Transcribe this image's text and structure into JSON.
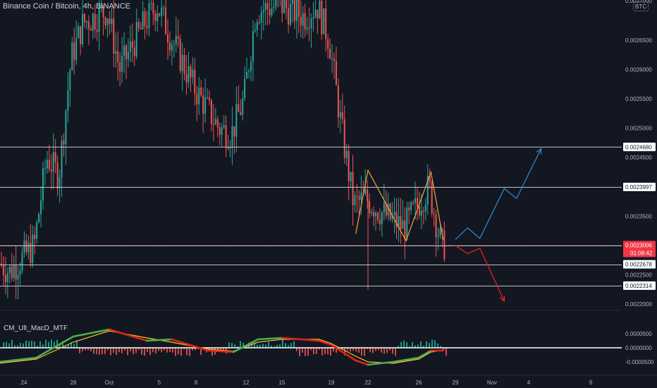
{
  "header": {
    "title": "Binance Coin / Bitcoin, 4h, BINANCE",
    "currency_badge": "BTC"
  },
  "indicator": {
    "title": "CM_Ult_MacD_MTF"
  },
  "colors": {
    "background": "#131722",
    "bull": "#26a69a",
    "bear": "#ef5350",
    "grid": "#1e222d",
    "level_line": "#d1d4dc",
    "pattern": "#f0a53a",
    "projection_up": "#2e86c1",
    "projection_down": "#e0231b",
    "macd_up": "#4caf50",
    "macd_down": "#e0231b",
    "signal": "#f9c22e",
    "price_label": "#f23645"
  },
  "chart_data": [
    {
      "type": "candlestick",
      "title": "Binance Coin / Bitcoin, 4h, BINANCE",
      "y_axis_ticks": [
        "0.0026500",
        "0.0026000",
        "0.0025500",
        "0.0025000",
        "0.0024500",
        "0.0023500",
        "0.0022000"
      ],
      "x_axis_ticks": [
        "24",
        "28",
        "Oct",
        "5",
        "8",
        "12",
        "15",
        "19",
        "22",
        "26",
        "29",
        "Nov",
        "4",
        "9"
      ],
      "ylim": [
        0.00218,
        0.00274
      ],
      "partial_top_label": "0.0027000",
      "horizontal_levels": [
        {
          "value": 0.002468,
          "label": "0.0024680"
        },
        {
          "value": 0.0023997,
          "label": "0.0023997"
        },
        {
          "value": 0.0022998,
          "label": "0.0022998"
        },
        {
          "value": 0.0022678,
          "label": "0.0022678"
        },
        {
          "value": 0.0022314,
          "label": "0.0022314"
        }
      ],
      "overlapped_axis_label": "0.0022500",
      "current_price": {
        "value": 0.0023006,
        "label": "0.0023006",
        "countdown": "01:08:42"
      },
      "pattern": {
        "name": "double top",
        "points": [
          {
            "x": "Oct 21",
            "y": 0.00232
          },
          {
            "x": "Oct 22",
            "y": 0.002428
          },
          {
            "x": "Oct 25",
            "y": 0.002308
          },
          {
            "x": "Oct 27",
            "y": 0.002425
          },
          {
            "x": "Oct 28",
            "y": 0.00231
          }
        ]
      },
      "projections": [
        {
          "direction": "up",
          "points": [
            {
              "x": "Oct 29",
              "y": 0.00231
            },
            {
              "x": "Oct 30",
              "y": 0.00233
            },
            {
              "x": "Oct 31",
              "y": 0.002312
            },
            {
              "x": "Nov 2",
              "y": 0.002397
            },
            {
              "x": "Nov 3",
              "y": 0.00238
            },
            {
              "x": "Nov 5",
              "y": 0.002465
            }
          ]
        },
        {
          "direction": "down",
          "points": [
            {
              "x": "Oct 29",
              "y": 0.0023
            },
            {
              "x": "Oct 30",
              "y": 0.002286
            },
            {
              "x": "Oct 31",
              "y": 0.002295
            },
            {
              "x": "Nov 2",
              "y": 0.002205
            }
          ]
        }
      ],
      "price_path": [
        {
          "x": "Sep 21",
          "y": 0.00229
        },
        {
          "x": "Sep 23",
          "y": 0.002255
        },
        {
          "x": "Sep 25",
          "y": 0.0023
        },
        {
          "x": "Sep 26",
          "y": 0.00245
        },
        {
          "x": "Sep 27",
          "y": 0.00242
        },
        {
          "x": "Sep 28",
          "y": 0.00262
        },
        {
          "x": "Sep 29",
          "y": 0.00268
        },
        {
          "x": "Oct 1",
          "y": 0.0027
        },
        {
          "x": "Oct 2",
          "y": 0.0026
        },
        {
          "x": "Oct 4",
          "y": 0.00268
        },
        {
          "x": "Oct 5",
          "y": 0.00271
        },
        {
          "x": "Oct 6",
          "y": 0.00266
        },
        {
          "x": "Oct 8",
          "y": 0.00257
        },
        {
          "x": "Oct 10",
          "y": 0.0025
        },
        {
          "x": "Oct 11",
          "y": 0.00249
        },
        {
          "x": "Oct 12",
          "y": 0.00255
        },
        {
          "x": "Oct 13",
          "y": 0.0027
        },
        {
          "x": "Oct 15",
          "y": 0.00271
        },
        {
          "x": "Oct 17",
          "y": 0.00269
        },
        {
          "x": "Oct 18",
          "y": 0.00271
        },
        {
          "x": "Oct 19",
          "y": 0.00265
        },
        {
          "x": "Oct 20",
          "y": 0.0025
        },
        {
          "x": "Oct 21",
          "y": 0.00237
        },
        {
          "x": "Oct 22",
          "y": 0.00238
        },
        {
          "x": "Oct 23",
          "y": 0.00236
        },
        {
          "x": "Oct 25",
          "y": 0.00233
        },
        {
          "x": "Oct 27",
          "y": 0.0024
        },
        {
          "x": "Oct 28",
          "y": 0.0023
        }
      ],
      "notable_wicks": [
        {
          "x": "Oct 22",
          "low": 0.002225
        },
        {
          "x": "Sep 23",
          "low": 0.002245
        }
      ]
    },
    {
      "type": "line",
      "title": "CM_Ult_MacD_MTF",
      "y_axis_ticks": [
        "0.0000500",
        "0.0000000",
        "-0.0000500"
      ],
      "ylim": [
        -8e-05,
        8e-05
      ],
      "zero_line": 0,
      "series": [],
      "macd": [
        {
          "x": "Sep 21",
          "y": -5.5e-05
        },
        {
          "x": "Sep 25",
          "y": -3.5e-05
        },
        {
          "x": "Sep 28",
          "y": 4e-05
        },
        {
          "x": "Oct 1",
          "y": 6.5e-05
        },
        {
          "x": "Oct 4",
          "y": 2.5e-05
        },
        {
          "x": "Oct 6",
          "y": 3e-05
        },
        {
          "x": "Oct 9",
          "y": -1e-05
        },
        {
          "x": "Oct 11",
          "y": -1.5e-05
        },
        {
          "x": "Oct 13",
          "y": 3e-05
        },
        {
          "x": "Oct 15",
          "y": 3.5e-05
        },
        {
          "x": "Oct 18",
          "y": 2.5e-05
        },
        {
          "x": "Oct 19",
          "y": 1e-05
        },
        {
          "x": "Oct 21",
          "y": -4.5e-05
        },
        {
          "x": "Oct 22",
          "y": -6e-05
        },
        {
          "x": "Oct 24",
          "y": -5e-05
        },
        {
          "x": "Oct 26",
          "y": -3.5e-05
        },
        {
          "x": "Oct 27",
          "y": -1e-05
        },
        {
          "x": "Oct 28",
          "y": -1e-05
        }
      ],
      "signal": [
        {
          "x": "Sep 21",
          "y": -6e-05
        },
        {
          "x": "Sep 25",
          "y": -4e-05
        },
        {
          "x": "Sep 28",
          "y": 2e-05
        },
        {
          "x": "Oct 1",
          "y": 6e-05
        },
        {
          "x": "Oct 4",
          "y": 3.5e-05
        },
        {
          "x": "Oct 6",
          "y": 2e-05
        },
        {
          "x": "Oct 9",
          "y": -5e-06
        },
        {
          "x": "Oct 11",
          "y": -1.2e-05
        },
        {
          "x": "Oct 13",
          "y": 2e-05
        },
        {
          "x": "Oct 15",
          "y": 3e-05
        },
        {
          "x": "Oct 18",
          "y": 3e-05
        },
        {
          "x": "Oct 19",
          "y": 1.5e-05
        },
        {
          "x": "Oct 21",
          "y": -3e-05
        },
        {
          "x": "Oct 22",
          "y": -5e-05
        },
        {
          "x": "Oct 24",
          "y": -5.5e-05
        },
        {
          "x": "Oct 26",
          "y": -4e-05
        },
        {
          "x": "Oct 27",
          "y": -1.5e-05
        },
        {
          "x": "Oct 28",
          "y": -8e-06
        }
      ]
    }
  ]
}
